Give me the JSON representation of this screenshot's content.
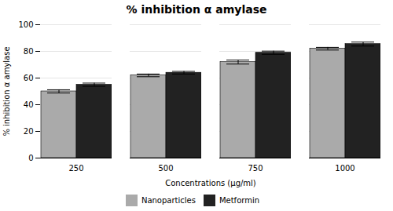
{
  "chart_data": {
    "type": "bar",
    "title": "% inhibition α amylase",
    "xlabel": "Concentrations (µg/ml)",
    "ylabel": "% inhibition α amylase",
    "categories": [
      "250",
      "500",
      "750",
      "1000"
    ],
    "series": [
      {
        "name": "Nanoparticles",
        "color": "#aaaaaa",
        "values": [
          50.0,
          62.0,
          72.0,
          82.0
        ],
        "errors": [
          1.2,
          1.0,
          1.5,
          1.0
        ]
      },
      {
        "name": "Metformin",
        "color": "#222222",
        "values": [
          55.0,
          64.0,
          79.0,
          85.5
        ],
        "errors": [
          1.2,
          1.0,
          1.2,
          1.5
        ]
      }
    ],
    "ylim": [
      0,
      100
    ],
    "yticks": [
      0,
      20,
      40,
      60,
      80,
      100
    ],
    "grid": true,
    "legend": "bottom"
  }
}
